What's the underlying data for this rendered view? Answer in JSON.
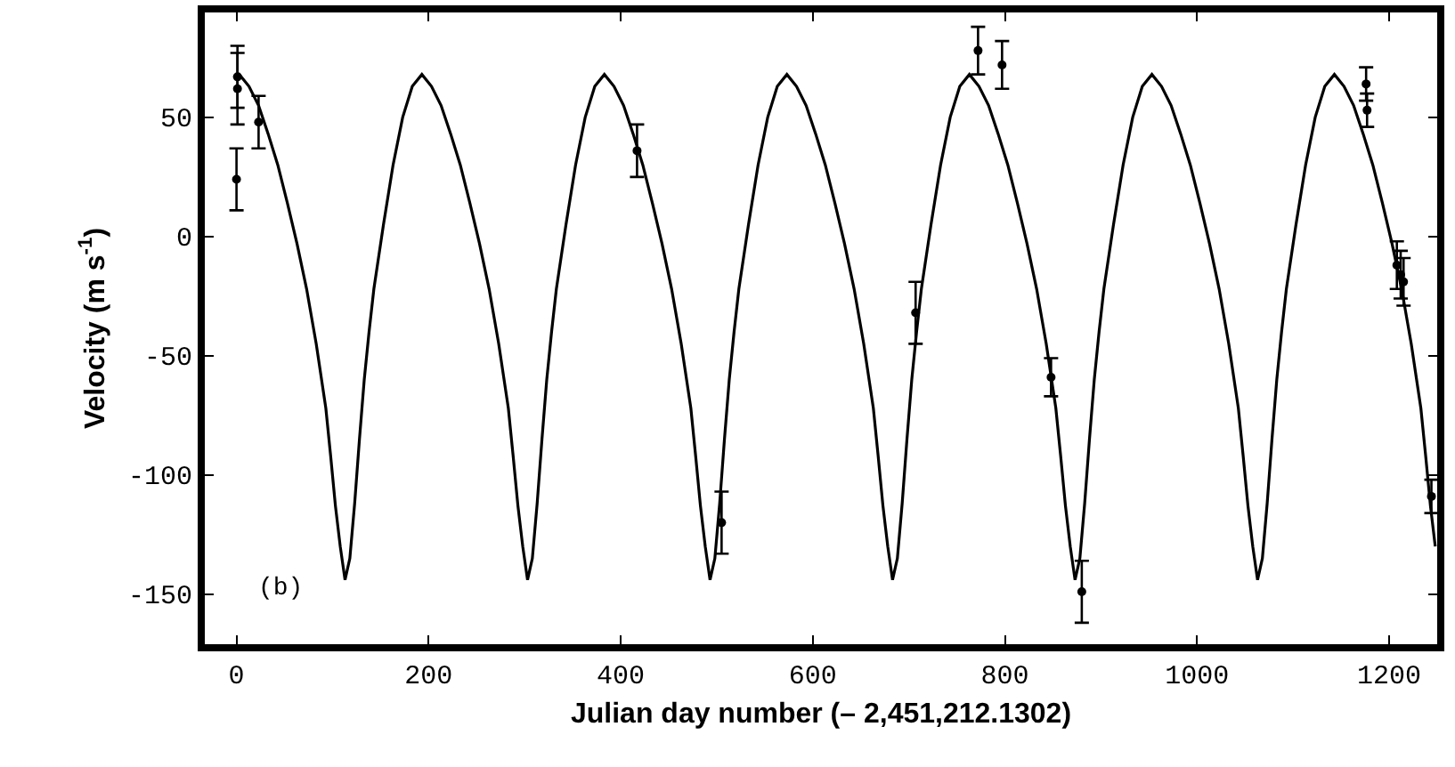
{
  "chart_data": {
    "type": "scatter",
    "xlabel": "Julian day number (– 2,451,212.1302)",
    "ylabel": "Velocity (m s$^{-1}$)",
    "xlim": [
      -33,
      1250
    ],
    "ylim": [
      -171,
      94
    ],
    "xticks": [
      0,
      200,
      400,
      600,
      800,
      1000,
      1200
    ],
    "yticks": [
      -150,
      -100,
      -50,
      0,
      50
    ],
    "grid": false,
    "annotations": [
      "(b)"
    ],
    "series": [
      {
        "type": "line",
        "color": "#000000",
        "marker": "none",
        "line_style": "solid",
        "x": [
          0,
          3,
          13,
          23,
          33,
          43,
          53,
          63,
          73,
          83,
          93,
          98,
          103,
          108,
          113,
          118,
          123,
          128,
          133,
          138,
          143,
          153,
          163,
          173,
          183,
          193,
          203,
          213,
          223,
          233,
          243,
          253,
          263,
          273,
          283,
          288,
          293,
          298,
          303,
          308,
          313,
          318,
          323,
          328,
          333,
          343,
          353,
          363,
          373,
          383,
          393,
          403,
          413,
          423,
          433,
          443,
          453,
          463,
          473,
          478,
          483,
          488,
          493,
          498,
          503,
          508,
          513,
          518,
          523,
          533,
          543,
          553,
          563,
          573,
          583,
          593,
          603,
          613,
          623,
          633,
          643,
          653,
          663,
          668,
          673,
          678,
          683,
          688,
          693,
          698,
          703,
          708,
          713,
          723,
          733,
          743,
          753,
          763,
          773,
          783,
          793,
          803,
          813,
          823,
          833,
          843,
          853,
          858,
          863,
          868,
          873,
          878,
          883,
          888,
          893,
          898,
          903,
          913,
          923,
          933,
          943,
          953,
          963,
          973,
          983,
          993,
          1003,
          1013,
          1023,
          1033,
          1043,
          1048,
          1053,
          1058,
          1063,
          1068,
          1073,
          1078,
          1083,
          1088,
          1093,
          1103,
          1113,
          1123,
          1133,
          1143,
          1153,
          1163,
          1173,
          1183,
          1193,
          1203,
          1213,
          1223,
          1233,
          1238,
          1243,
          1248
        ],
        "values": [
          67,
          68,
          63,
          55,
          43,
          30,
          14,
          -3,
          -22,
          -45,
          -72,
          -92,
          -113,
          -130,
          -144,
          -135,
          -112,
          -85,
          -60,
          -40,
          -22,
          5,
          30,
          50,
          63,
          68,
          63,
          55,
          43,
          30,
          14,
          -3,
          -22,
          -45,
          -72,
          -92,
          -113,
          -130,
          -144,
          -135,
          -112,
          -85,
          -60,
          -40,
          -22,
          5,
          30,
          50,
          63,
          68,
          63,
          55,
          43,
          30,
          14,
          -3,
          -22,
          -45,
          -72,
          -92,
          -113,
          -130,
          -144,
          -135,
          -112,
          -85,
          -60,
          -40,
          -22,
          5,
          30,
          50,
          63,
          68,
          63,
          55,
          43,
          30,
          14,
          -3,
          -22,
          -45,
          -72,
          -92,
          -113,
          -130,
          -144,
          -135,
          -112,
          -85,
          -60,
          -40,
          -22,
          5,
          30,
          50,
          63,
          68,
          63,
          55,
          43,
          30,
          14,
          -3,
          -22,
          -45,
          -72,
          -92,
          -113,
          -130,
          -144,
          -135,
          -112,
          -85,
          -60,
          -40,
          -22,
          5,
          30,
          50,
          63,
          68,
          63,
          55,
          43,
          30,
          14,
          -3,
          -22,
          -45,
          -72,
          -92,
          -113,
          -130,
          -144,
          -135,
          -112,
          -85,
          -60,
          -40,
          -22,
          5,
          30,
          50,
          63,
          68,
          63,
          55,
          43,
          30,
          14,
          -3,
          -22,
          -45,
          -72,
          -92,
          -113,
          -130
        ]
      },
      {
        "color": "#000000",
        "marker": "circle",
        "x": [
          1,
          1,
          0,
          23,
          417,
          505,
          707,
          772,
          797,
          848,
          880,
          1176,
          1177,
          1208,
          1212,
          1215,
          1244
        ],
        "values": [
          67,
          62,
          24,
          48,
          36,
          -120,
          -32,
          78,
          72,
          -59,
          -149,
          64,
          53,
          -12,
          -16,
          -19,
          -109
        ],
        "errors": [
          13,
          15,
          13,
          11,
          11,
          13,
          13,
          10,
          10,
          8,
          13,
          7,
          7,
          10,
          10,
          10,
          7
        ]
      }
    ]
  }
}
